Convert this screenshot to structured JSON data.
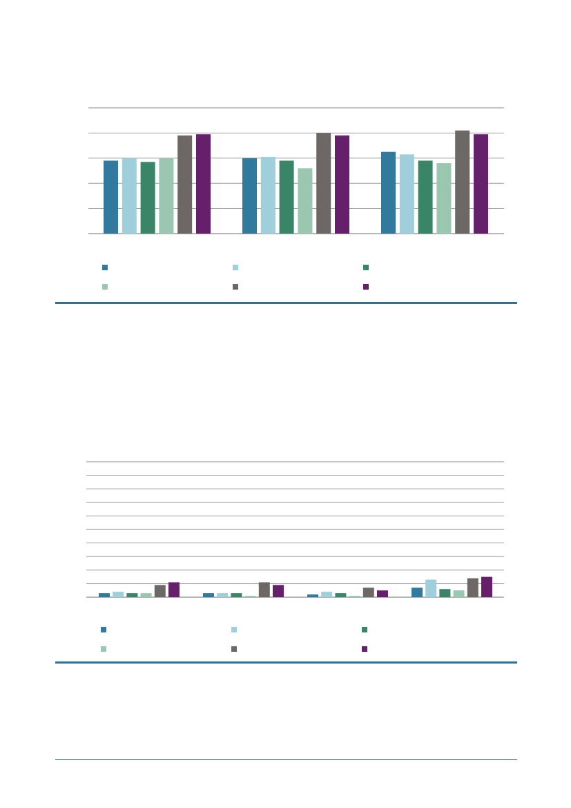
{
  "chart_data": [
    {
      "type": "bar",
      "categories": [
        "",
        "",
        ""
      ],
      "series": [
        {
          "color": "#317a9e",
          "values": [
            2.9,
            3.0,
            3.25
          ]
        },
        {
          "color": "#9ecfda",
          "values": [
            3.0,
            3.05,
            3.15
          ]
        },
        {
          "color": "#3a8468",
          "values": [
            2.85,
            2.9,
            2.9
          ]
        },
        {
          "color": "#9bc7b1",
          "values": [
            3.0,
            2.6,
            2.8
          ]
        },
        {
          "color": "#6d6866",
          "values": [
            3.9,
            4.0,
            4.1
          ]
        },
        {
          "color": "#651f6b",
          "values": [
            3.95,
            3.9,
            3.95
          ]
        }
      ],
      "ylim": [
        0,
        5
      ],
      "gridlines": 5,
      "grid": true,
      "legend": "bottom"
    },
    {
      "type": "bar",
      "categories": [
        "",
        "",
        "",
        ""
      ],
      "series": [
        {
          "color": "#317a9e",
          "values": [
            0.3,
            0.3,
            0.2,
            0.7
          ]
        },
        {
          "color": "#9ecfda",
          "values": [
            0.4,
            0.3,
            0.4,
            1.3
          ]
        },
        {
          "color": "#3a8468",
          "values": [
            0.3,
            0.3,
            0.3,
            0.6
          ]
        },
        {
          "color": "#9bc7b1",
          "values": [
            0.3,
            0.1,
            0.1,
            0.5
          ]
        },
        {
          "color": "#6d6866",
          "values": [
            0.9,
            1.1,
            0.7,
            1.4
          ]
        },
        {
          "color": "#651f6b",
          "values": [
            1.1,
            0.9,
            0.5,
            1.5
          ]
        }
      ],
      "ylim": [
        0,
        10
      ],
      "gridlines": 10,
      "grid": true,
      "legend": "bottom"
    }
  ],
  "colors": {
    "accent_rule": "#2f7096",
    "gridline": "#8a8a8a"
  }
}
